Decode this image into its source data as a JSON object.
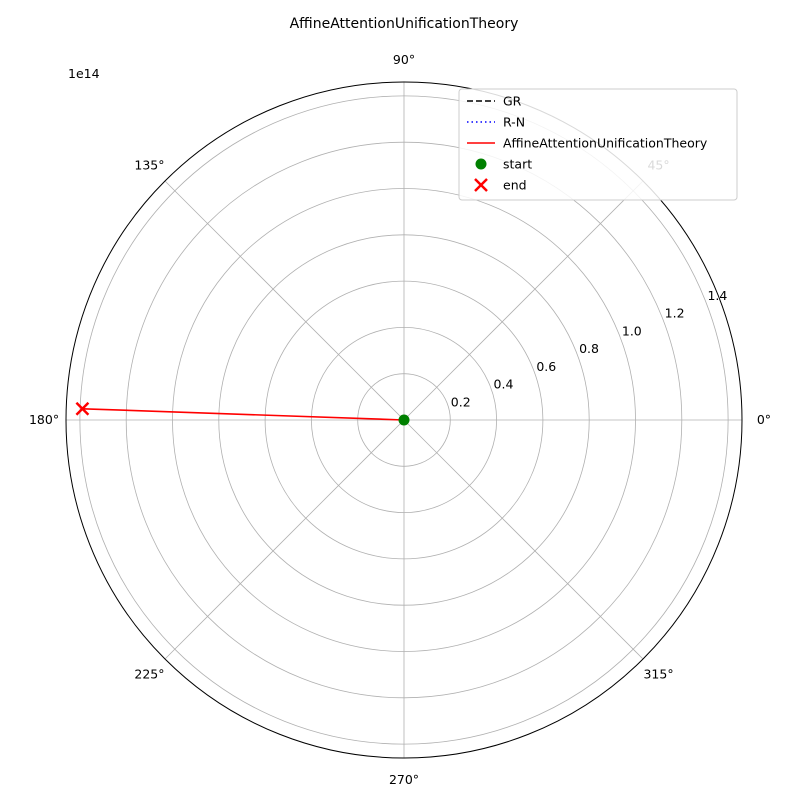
{
  "chart_data": {
    "type": "polar-line",
    "title": "AffineAttentionUnificationTheory",
    "angle_ticks": [
      0,
      45,
      90,
      135,
      180,
      225,
      270,
      315
    ],
    "angle_tick_labels": [
      "0°",
      "45°",
      "90°",
      "135°",
      "180°",
      "225°",
      "270°",
      "315°"
    ],
    "radial_ticks": [
      0.2,
      0.4,
      0.6,
      0.8,
      1.0,
      1.2,
      1.4
    ],
    "radial_tick_labels": [
      "0.2",
      "0.4",
      "0.6",
      "0.8",
      "1.0",
      "1.2",
      "1.4"
    ],
    "radial_multiplier_label": "1e14",
    "rlim": [
      0,
      1.46
    ],
    "grid": true,
    "legend_position": "top-right",
    "series": [
      {
        "name": "GR",
        "style": "dashed",
        "color": "#000000",
        "points": []
      },
      {
        "name": "R-N",
        "style": "dotted",
        "color": "#0000ff",
        "points": []
      },
      {
        "name": "AffineAttentionUnificationTheory",
        "style": "solid",
        "color": "#ff0000",
        "points": [
          {
            "theta": 0,
            "r": 0
          },
          {
            "theta": 178,
            "r": 1.39
          }
        ]
      }
    ],
    "markers": [
      {
        "name": "start",
        "shape": "circle",
        "color": "#008000",
        "theta": 0,
        "r": 0
      },
      {
        "name": "end",
        "shape": "x",
        "color": "#ff0000",
        "theta": 178,
        "r": 1.39
      }
    ]
  }
}
